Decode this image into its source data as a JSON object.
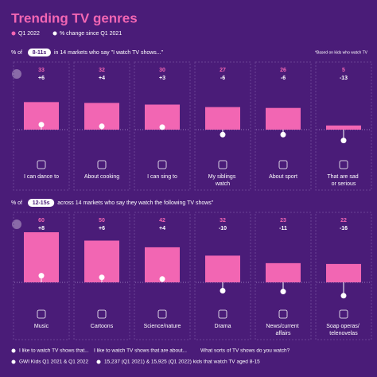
{
  "title": "Trending TV genres",
  "chart_data": [
    {
      "type": "bar",
      "subtitle_prefix": "% of",
      "badge": "8-11s",
      "subtitle": "in 14 markets who say \"I watch TV shows...\"",
      "note": "*Based on kids who watch TV",
      "categories": [
        "I can dance to",
        "About cooking",
        "I can sing to",
        "My siblings watch",
        "About sport",
        "That are sad or serious"
      ],
      "series": [
        {
          "name": "Q1 2022",
          "color": "#f266b3",
          "values": [
            33,
            32,
            30,
            27,
            26,
            5
          ]
        },
        {
          "name": "% change since Q1 2021",
          "color": "#ffffff",
          "values": [
            6,
            4,
            3,
            -6,
            -6,
            -13
          ],
          "value_labels": [
            "+6",
            "+4",
            "+3",
            "-6",
            "-6",
            "-13"
          ]
        }
      ]
    },
    {
      "type": "bar",
      "subtitle_prefix": "% of",
      "badge": "12-15s",
      "subtitle": "across 14 markets who say they watch the following TV shows\"",
      "categories": [
        "Music",
        "Cartoons",
        "Science/nature",
        "Drama",
        "News/current affairs",
        "Soap operas/ telenovelas"
      ],
      "series": [
        {
          "color": "#f266b3",
          "values": [
            60,
            50,
            42,
            32,
            23,
            22
          ]
        },
        {
          "color": "#ffffff",
          "values": [
            8,
            6,
            4,
            -10,
            -11,
            -16
          ],
          "value_labels": [
            "+8",
            "+6",
            "+4",
            "-10",
            "-11",
            "-16"
          ]
        }
      ]
    }
  ],
  "footer": {
    "questions": [
      "I like to watch TV shows that...",
      "I like to watch TV shows that are about...",
      "What sorts of TV shows do you watch?"
    ],
    "source": "GWI Kids Q1 2021 & Q1 2022",
    "base": "15,237 (Q1 2021) & 15,925 (Q1 2022) kids that watch TV aged 8-15"
  }
}
